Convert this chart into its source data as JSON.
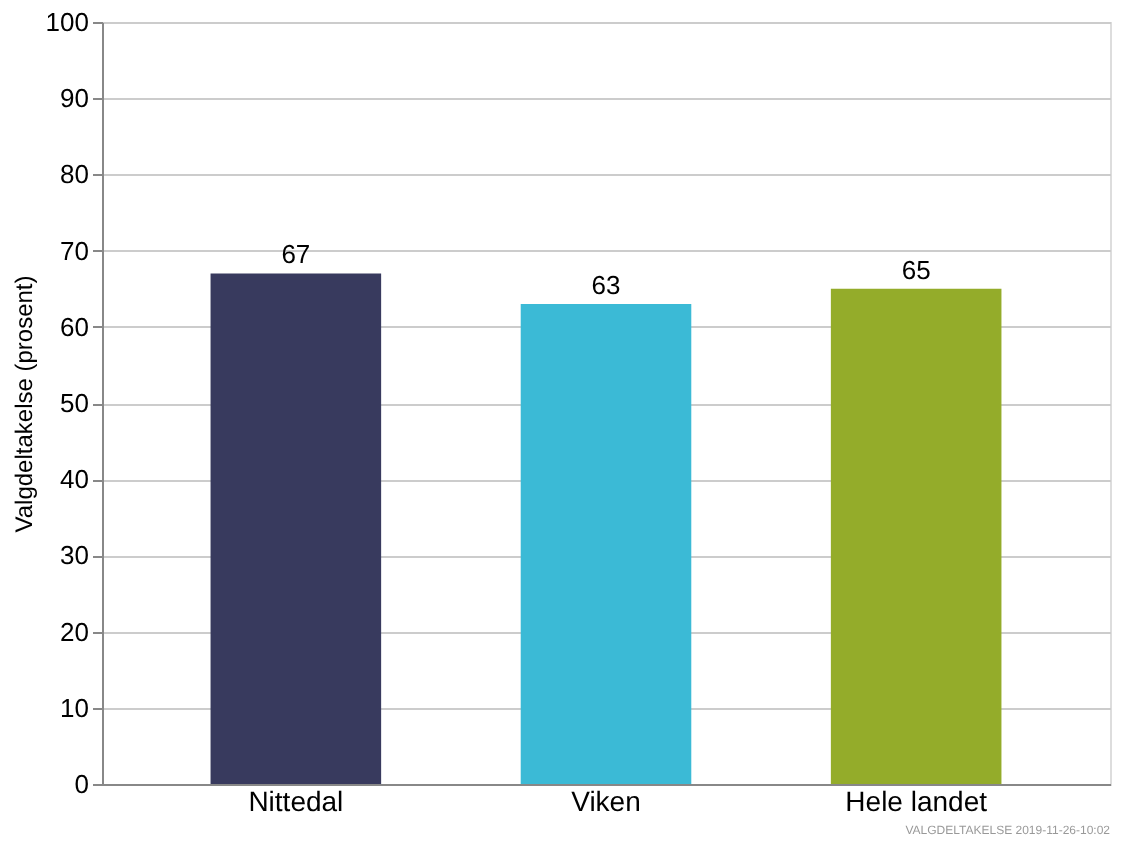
{
  "chart_data": {
    "type": "bar",
    "ylabel": "Valgdeltakelse (prosent)",
    "categories": [
      "Nittedal",
      "Viken",
      "Hele landet"
    ],
    "values": [
      67,
      63,
      65
    ],
    "colors": [
      "#383a5e",
      "#3bbad6",
      "#94ac2a"
    ],
    "ylim": [
      0,
      100
    ],
    "yticks": [
      0,
      10,
      20,
      30,
      40,
      50,
      60,
      70,
      80,
      90,
      100
    ],
    "grid": "y",
    "data_labels": true,
    "annotations": [
      "VALGDELTAKELSE 2019-11-26-10:02"
    ]
  }
}
